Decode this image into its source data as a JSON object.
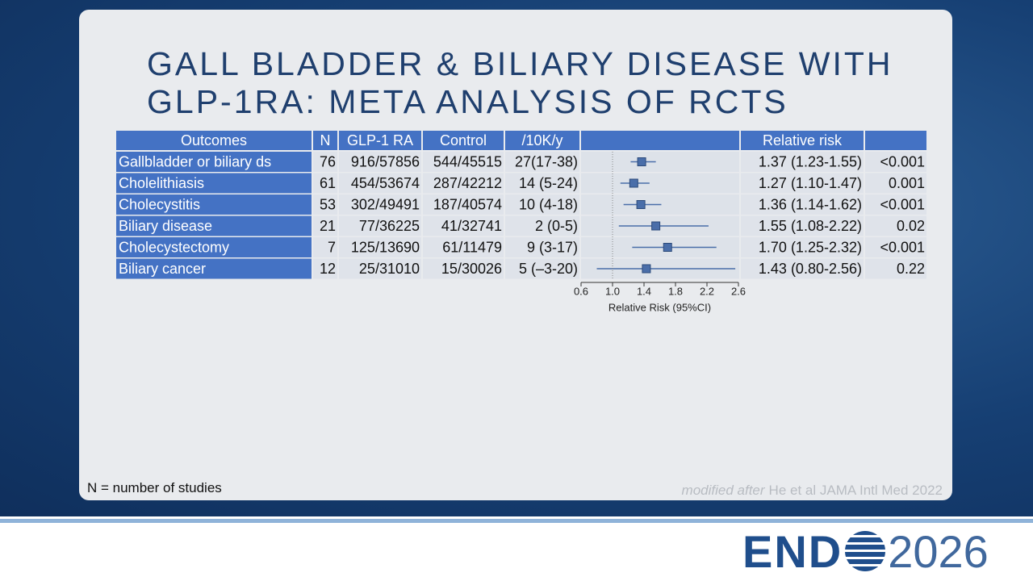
{
  "title": [
    "GALL BLADDER & BILIARY DISEASE WITH",
    "GLP-1RA: META ANALYSIS OF RCTS"
  ],
  "table": {
    "columns": [
      "Outcomes",
      "N",
      "GLP-1 RA",
      "Control",
      "/10K/y",
      "Relative risk"
    ],
    "rows": [
      {
        "outcome": "Gallbladder or biliary ds",
        "n": 76,
        "glp1": "916/57856",
        "control": "544/45515",
        "rate": "27(17-38)",
        "rr": 1.37,
        "lo": 1.23,
        "hi": 1.55,
        "rr_label": "1.37 (1.23-1.55)",
        "p": "<0.001"
      },
      {
        "outcome": "Cholelithiasis",
        "n": 61,
        "glp1": "454/53674",
        "control": "287/42212",
        "rate": "14 (5-24)",
        "rr": 1.27,
        "lo": 1.1,
        "hi": 1.47,
        "rr_label": "1.27 (1.10-1.47)",
        "p": "0.001"
      },
      {
        "outcome": "Cholecystitis",
        "n": 53,
        "glp1": "302/49491",
        "control": "187/40574",
        "rate": "10 (4-18)",
        "rr": 1.36,
        "lo": 1.14,
        "hi": 1.62,
        "rr_label": "1.36 (1.14-1.62)",
        "p": "<0.001"
      },
      {
        "outcome": "Biliary disease",
        "n": 21,
        "glp1": "77/36225",
        "control": "41/32741",
        "rate": "2 (0-5)",
        "rr": 1.55,
        "lo": 1.08,
        "hi": 2.22,
        "rr_label": "1.55 (1.08-2.22)",
        "p": "0.02"
      },
      {
        "outcome": "Cholecystectomy",
        "n": 7,
        "glp1": "125/13690",
        "control": "61/11479",
        "rate": "9 (3-17)",
        "rr": 1.7,
        "lo": 1.25,
        "hi": 2.32,
        "rr_label": "1.70 (1.25-2.32)",
        "p": "<0.001"
      },
      {
        "outcome": "Biliary cancer",
        "n": 12,
        "glp1": "25/31010",
        "control": "15/30026",
        "rate": "5 (–3-20)",
        "rr": 1.43,
        "lo": 0.8,
        "hi": 2.56,
        "rr_label": "1.43 (0.80-2.56)",
        "p": "0.22"
      }
    ]
  },
  "forest": {
    "xlim": [
      0.6,
      2.6
    ],
    "xticks": [
      0.6,
      {
        "value": 1,
        "label": "1.0"
      },
      1.4,
      1.8,
      2.2,
      2.6
    ],
    "reference": 1,
    "x_label": "Relative Risk (95%CI)",
    "color": "#4a6ea9"
  },
  "footnote": "N = number of studies",
  "citation": {
    "italic": "modified after",
    "text": "He et al JAMA Intl Med 2022"
  },
  "logo": {
    "left": "END",
    "right": "2026"
  }
}
